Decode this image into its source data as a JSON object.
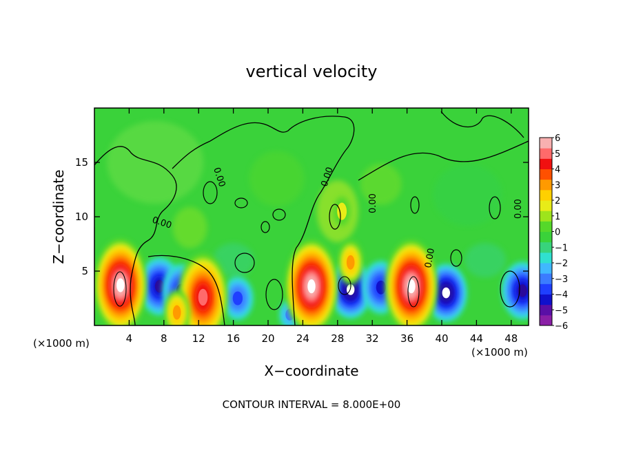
{
  "chart_data": {
    "type": "heatmap",
    "title": "vertical velocity",
    "xlabel": "X−coordinate",
    "ylabel": "Z−coordinate",
    "x_units": "(×1000 m)",
    "y_units": "(×1000 m)",
    "xlim": [
      0,
      50
    ],
    "ylim": [
      0,
      20
    ],
    "x_ticks": [
      4,
      8,
      12,
      16,
      20,
      24,
      28,
      32,
      36,
      40,
      44,
      48
    ],
    "x_tick_labels": [
      "4",
      "8",
      "12",
      "16",
      "20",
      "24",
      "28",
      "32",
      "36",
      "40",
      "44",
      "48"
    ],
    "y_ticks": [
      5,
      10,
      15
    ],
    "y_tick_labels": [
      "5",
      "10",
      "15"
    ],
    "colorbar": {
      "min": -6,
      "max": 6,
      "tick_labels": [
        "6",
        "5",
        "4",
        "3",
        "2",
        "1",
        "0",
        "−1",
        "−2",
        "−3",
        "−4",
        "−5",
        "−6"
      ],
      "colors": [
        "#8a1fa6",
        "#5a0fa6",
        "#1010cc",
        "#1f3fff",
        "#3b7cff",
        "#40b8ff",
        "#30e0d0",
        "#38d37c",
        "#3ad23a",
        "#55d82a",
        "#9ee41c",
        "#e8ec18",
        "#ffd000",
        "#ff9a00",
        "#ff5000",
        "#f01010",
        "#ff6a6a",
        "#f8b0b0"
      ]
    },
    "contour_label": "0.00",
    "annotation": "CONTOUR INTERVAL = 8.000E+00",
    "updrafts": [
      {
        "x": 3.0,
        "z": 3.7,
        "w": 6.0
      },
      {
        "x": 12.5,
        "z": 2.6,
        "w": 4.8
      },
      {
        "x": 9.5,
        "z": 1.2,
        "w": 2.0
      },
      {
        "x": 25.0,
        "z": 3.6,
        "w": 6.0
      },
      {
        "x": 36.5,
        "z": 3.6,
        "w": 6.0
      },
      {
        "x": 29.5,
        "z": 5.8,
        "w": 2.0
      },
      {
        "x": 28.5,
        "z": 10.5,
        "w": 1.0
      }
    ],
    "downdrafts": [
      {
        "x": 7.5,
        "z": 3.6,
        "w": -5.0
      },
      {
        "x": 10.0,
        "z": 3.2,
        "w": -4.0
      },
      {
        "x": 16.5,
        "z": 2.5,
        "w": -3.0
      },
      {
        "x": 29.5,
        "z": 3.3,
        "w": -5.5
      },
      {
        "x": 33.0,
        "z": 3.5,
        "w": -4.0
      },
      {
        "x": 40.5,
        "z": 3.0,
        "w": -5.5
      },
      {
        "x": 49.3,
        "z": 3.2,
        "w": -4.5
      },
      {
        "x": 22.5,
        "z": 1.0,
        "w": -1.5
      }
    ]
  }
}
